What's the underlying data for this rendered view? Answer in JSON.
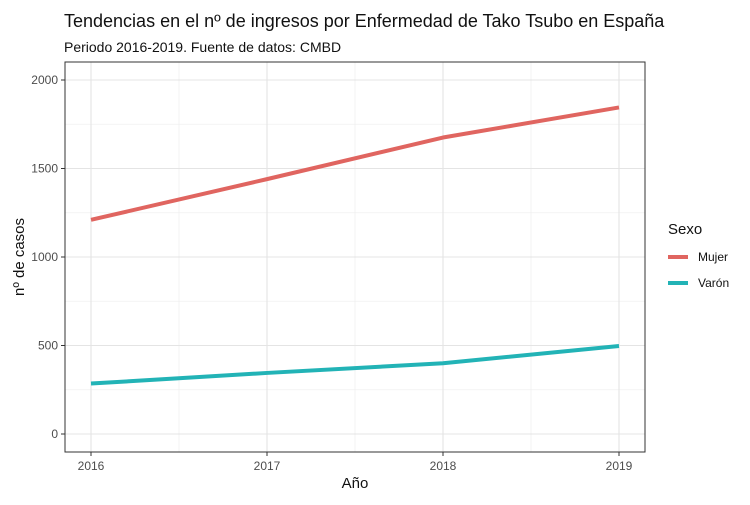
{
  "chart_data": {
    "type": "line",
    "title": "Tendencias en el nº de ingresos por Enfermedad de Tako Tsubo en España",
    "subtitle": "Periodo 2016-2019. Fuente de datos: CMBD",
    "xlabel": "Año",
    "ylabel": "nº de casos",
    "x": [
      2016,
      2017,
      2018,
      2019
    ],
    "xlim": [
      2016,
      2019
    ],
    "ylim": [
      0,
      2000
    ],
    "y_ticks": [
      0,
      500,
      1000,
      1500,
      2000
    ],
    "grid": true,
    "legend_placement": "right",
    "legend_title": "Sexo",
    "series": [
      {
        "name": "Mujer",
        "color": "#e06560",
        "values": [
          1210,
          1440,
          1675,
          1845
        ]
      },
      {
        "name": "Varón",
        "color": "#22b3b6",
        "values": [
          285,
          345,
          400,
          497
        ]
      }
    ]
  }
}
